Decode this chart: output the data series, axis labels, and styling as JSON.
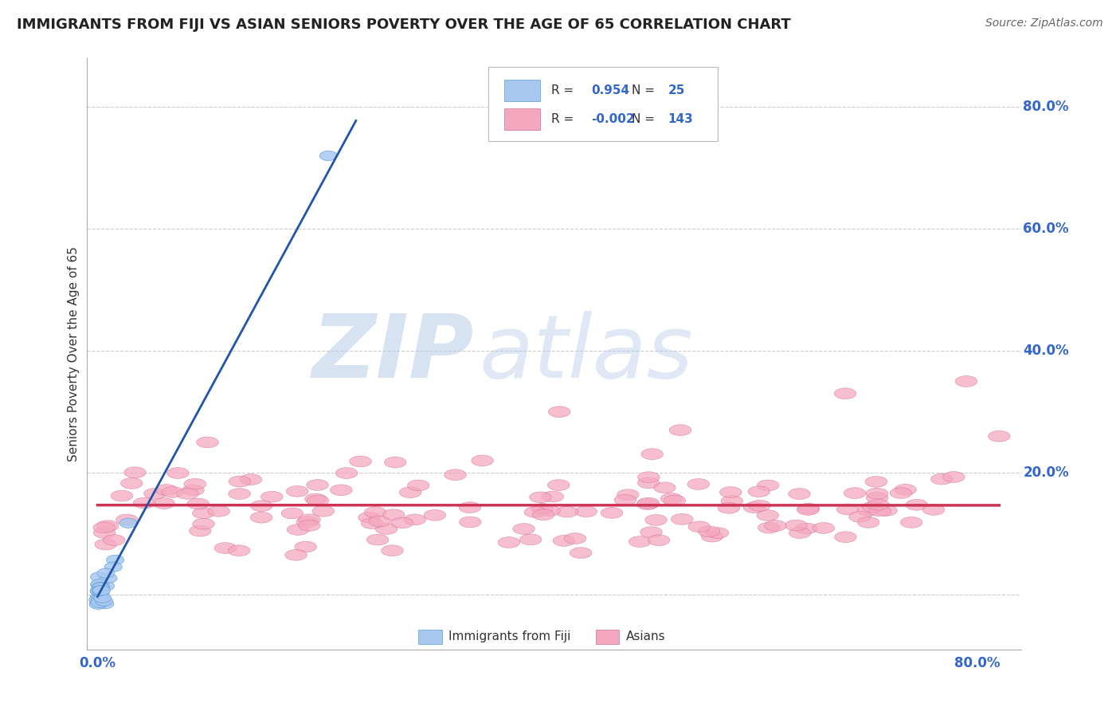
{
  "title": "IMMIGRANTS FROM FIJI VS ASIAN SENIORS POVERTY OVER THE AGE OF 65 CORRELATION CHART",
  "source": "Source: ZipAtlas.com",
  "ylabel": "Seniors Poverty Over the Age of 65",
  "fiji_R": 0.954,
  "fiji_N": 25,
  "asian_R": -0.002,
  "asian_N": 143,
  "fiji_color": "#a8c8f0",
  "fiji_edge_color": "#5a9fd4",
  "fiji_line_color": "#2255aa",
  "asian_color": "#f4a8c0",
  "asian_edge_color": "#d07090",
  "asian_line_color": "#cc3355",
  "legend_label_fiji": "Immigrants from Fiji",
  "legend_label_asian": "Asians",
  "watermark_zip": "ZIP",
  "watermark_atlas": "atlas",
  "watermark_color_zip": "#b8cce8",
  "watermark_color_atlas": "#b8cce8",
  "grid_color": "#cccccc",
  "background_color": "#ffffff",
  "title_color": "#222222",
  "source_color": "#666666",
  "axis_label_color": "#333333",
  "tick_label_color": "#3366cc",
  "legend_text_color": "#333333",
  "legend_value_color": "#3366cc"
}
